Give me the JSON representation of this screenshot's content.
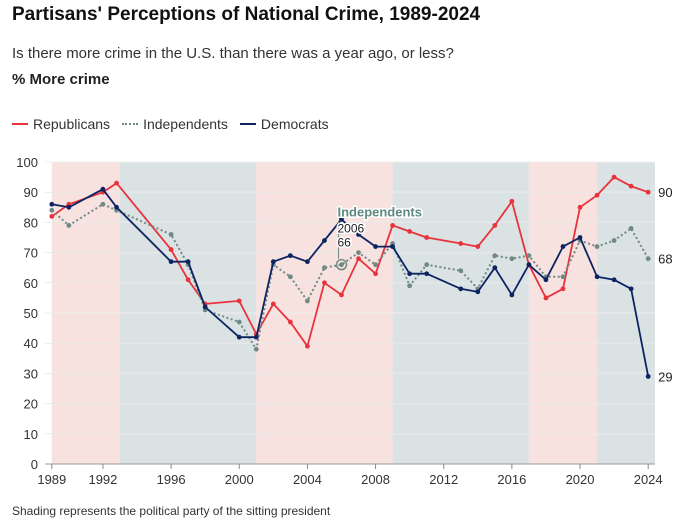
{
  "header": {
    "title": "Partisans' Perceptions of National Crime, 1989-2024",
    "subtitle": "Is there more crime in the U.S. than there was a year ago, or less?",
    "measure": "% More crime"
  },
  "legend": [
    {
      "label": "Republicans",
      "color": "#e8333c",
      "style": "solid"
    },
    {
      "label": "Independents",
      "color": "#6f8a84",
      "style": "dotted"
    },
    {
      "label": "Democrats",
      "color": "#0d2463",
      "style": "solid"
    }
  ],
  "footnote": "Shading represents the political party of the sitting president",
  "chart_data": {
    "type": "line",
    "title": "Partisans' Perceptions of National Crime, 1989-2024",
    "ylabel": "% More crime",
    "xlim": [
      1989,
      2024
    ],
    "ylim": [
      0,
      100
    ],
    "yticks": [
      0,
      10,
      20,
      30,
      40,
      50,
      60,
      70,
      80,
      90,
      100
    ],
    "xticks": [
      1989,
      1992,
      1996,
      2000,
      2004,
      2008,
      2012,
      2016,
      2020,
      2024
    ],
    "grid": true,
    "shading": [
      {
        "from": 1989,
        "to": 1993,
        "party": "Republican",
        "color": "#f7e2e0"
      },
      {
        "from": 1993,
        "to": 2001,
        "party": "Democrat",
        "color": "#dbe2e4"
      },
      {
        "from": 2001,
        "to": 2009,
        "party": "Republican",
        "color": "#f7e2e0"
      },
      {
        "from": 2009,
        "to": 2017,
        "party": "Democrat",
        "color": "#dbe2e4"
      },
      {
        "from": 2017,
        "to": 2021,
        "party": "Republican",
        "color": "#f7e2e0"
      },
      {
        "from": 2021,
        "to": 2024.4,
        "party": "Democrat",
        "color": "#dbe2e4"
      }
    ],
    "series": [
      {
        "name": "Republicans",
        "color": "#e8333c",
        "style": "solid",
        "points": [
          [
            1989,
            82
          ],
          [
            1990,
            86
          ],
          [
            1992,
            90
          ],
          [
            1992.8,
            93
          ],
          [
            1996,
            71
          ],
          [
            1997,
            61
          ],
          [
            1998,
            53
          ],
          [
            2000,
            54
          ],
          [
            2001,
            43
          ],
          [
            2002,
            53
          ],
          [
            2003,
            47
          ],
          [
            2004,
            39
          ],
          [
            2005,
            60
          ],
          [
            2006,
            56
          ],
          [
            2007,
            68
          ],
          [
            2008,
            63
          ],
          [
            2009,
            79
          ],
          [
            2010,
            77
          ],
          [
            2011,
            75
          ],
          [
            2013,
            73
          ],
          [
            2014,
            72
          ],
          [
            2015,
            79
          ],
          [
            2016,
            87
          ],
          [
            2017,
            66
          ],
          [
            2018,
            55
          ],
          [
            2019,
            58
          ],
          [
            2020,
            85
          ],
          [
            2021,
            89
          ],
          [
            2022,
            95
          ],
          [
            2023,
            92
          ],
          [
            2024,
            90
          ]
        ],
        "end_label": "90"
      },
      {
        "name": "Independents",
        "color": "#6f8a84",
        "style": "dotted",
        "points": [
          [
            1989,
            84
          ],
          [
            1990,
            79
          ],
          [
            1992,
            86
          ],
          [
            1992.8,
            84
          ],
          [
            1996,
            76
          ],
          [
            1997,
            66
          ],
          [
            1998,
            51
          ],
          [
            2000,
            47
          ],
          [
            2001,
            38
          ],
          [
            2002,
            66
          ],
          [
            2003,
            62
          ],
          [
            2004,
            54
          ],
          [
            2005,
            65
          ],
          [
            2006,
            66
          ],
          [
            2007,
            70
          ],
          [
            2008,
            66
          ],
          [
            2009,
            73
          ],
          [
            2010,
            59
          ],
          [
            2011,
            66
          ],
          [
            2013,
            64
          ],
          [
            2014,
            58
          ],
          [
            2015,
            69
          ],
          [
            2016,
            68
          ],
          [
            2017,
            69
          ],
          [
            2018,
            62
          ],
          [
            2019,
            62
          ],
          [
            2020,
            74
          ],
          [
            2021,
            72
          ],
          [
            2022,
            74
          ],
          [
            2023,
            78
          ],
          [
            2024,
            68
          ]
        ],
        "end_label": "68"
      },
      {
        "name": "Democrats",
        "color": "#0d2463",
        "style": "solid",
        "points": [
          [
            1989,
            86
          ],
          [
            1990,
            85
          ],
          [
            1992,
            91
          ],
          [
            1992.8,
            85
          ],
          [
            1996,
            67
          ],
          [
            1997,
            67
          ],
          [
            1998,
            52
          ],
          [
            2000,
            42
          ],
          [
            2001,
            42
          ],
          [
            2002,
            67
          ],
          [
            2003,
            69
          ],
          [
            2004,
            67
          ],
          [
            2005,
            74
          ],
          [
            2006,
            81
          ],
          [
            2007,
            76
          ],
          [
            2008,
            72
          ],
          [
            2009,
            72
          ],
          [
            2010,
            63
          ],
          [
            2011,
            63
          ],
          [
            2013,
            58
          ],
          [
            2014,
            57
          ],
          [
            2015,
            65
          ],
          [
            2016,
            56
          ],
          [
            2017,
            66
          ],
          [
            2018,
            61
          ],
          [
            2019,
            72
          ],
          [
            2020,
            75
          ],
          [
            2021,
            62
          ],
          [
            2022,
            61
          ],
          [
            2023,
            58
          ],
          [
            2024,
            29
          ]
        ],
        "end_label": "29"
      }
    ],
    "annotation": {
      "series": "Independents",
      "title": "Independents",
      "year": "2006",
      "value": "66",
      "x": 2006,
      "y": 66
    }
  }
}
